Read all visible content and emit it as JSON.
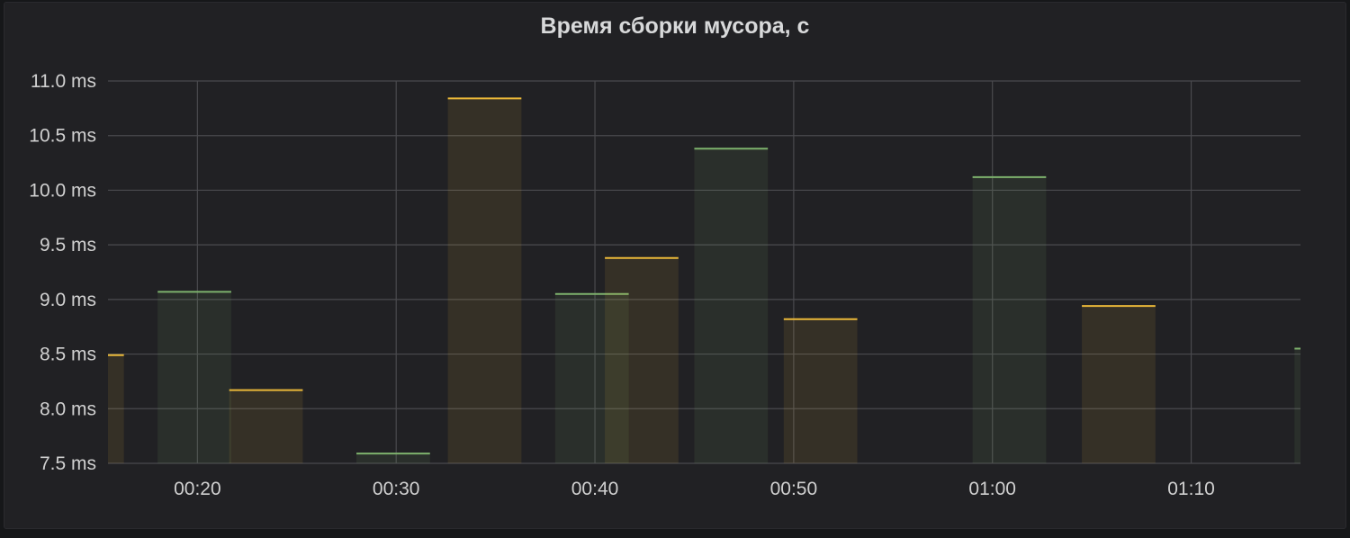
{
  "panel": {
    "title": "Время сборки мусора, с"
  },
  "chart_data": {
    "type": "bar",
    "title": "Время сборки мусора, с",
    "ylabel": "",
    "xlabel": "",
    "y_unit": "ms",
    "ylim": [
      7.5,
      11.0
    ],
    "xlim_minutes": [
      15.5,
      75.5
    ],
    "yticks": [
      "11.0 ms",
      "10.5 ms",
      "10.0 ms",
      "9.5 ms",
      "9.0 ms",
      "8.5 ms",
      "8.0 ms",
      "7.5 ms"
    ],
    "ytick_values": [
      11.0,
      10.5,
      10.0,
      9.5,
      9.0,
      8.5,
      8.0,
      7.5
    ],
    "xticks": [
      "00:20",
      "00:30",
      "00:40",
      "00:50",
      "01:00",
      "01:10"
    ],
    "xtick_values_minutes": [
      20,
      30,
      40,
      50,
      60,
      70
    ],
    "grid": true,
    "legend": "none",
    "series": [
      {
        "color": "#7eb26d",
        "bars": [
          {
            "start_min": 18.0,
            "end_min": 21.7,
            "value": 9.07
          },
          {
            "start_min": 28.0,
            "end_min": 31.7,
            "value": 7.59
          },
          {
            "start_min": 38.0,
            "end_min": 41.7,
            "value": 9.05
          },
          {
            "start_min": 45.0,
            "end_min": 48.7,
            "value": 10.38
          },
          {
            "start_min": 59.0,
            "end_min": 62.7,
            "value": 10.12
          },
          {
            "start_min": 75.2,
            "end_min": 75.5,
            "value": 8.55
          }
        ]
      },
      {
        "color": "#eab839",
        "bars": [
          {
            "start_min": 15.5,
            "end_min": 16.3,
            "value": 8.49
          },
          {
            "start_min": 21.6,
            "end_min": 25.3,
            "value": 8.17
          },
          {
            "start_min": 32.6,
            "end_min": 36.3,
            "value": 10.84
          },
          {
            "start_min": 40.5,
            "end_min": 44.2,
            "value": 9.38
          },
          {
            "start_min": 49.5,
            "end_min": 53.2,
            "value": 8.82
          },
          {
            "start_min": 64.5,
            "end_min": 68.2,
            "value": 8.94
          }
        ]
      }
    ]
  }
}
